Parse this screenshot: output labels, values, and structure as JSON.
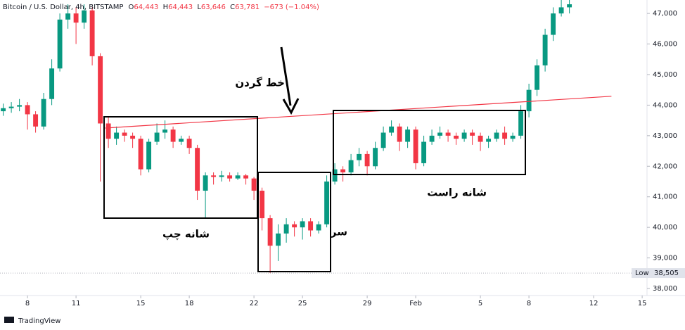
{
  "chart_data": {
    "type": "candlestick",
    "header": {
      "symbol": "Bitcoin / U.S. Dollar, 4h, BITSTAMP",
      "open_label": "O",
      "open": "64,443",
      "high_label": "H",
      "high": "64,443",
      "low_label": "L",
      "low": "63,646",
      "close_label": "C",
      "close": "63,781",
      "change": "−673 (−1.04%)"
    },
    "x": [
      6.5,
      7,
      7.5,
      8,
      8.5,
      9,
      9.5,
      10,
      10.5,
      11,
      11.5,
      12,
      12.5,
      13,
      13.5,
      14,
      14.5,
      15,
      15.5,
      16,
      16.5,
      17,
      17.5,
      18,
      18.5,
      19,
      19.5,
      20,
      20.5,
      21,
      21.5,
      22,
      22.5,
      23,
      23.5,
      24,
      24.5,
      25,
      25.5,
      26,
      26.5,
      27,
      27.5,
      28,
      28.5,
      29,
      29.5,
      30,
      30.5,
      31,
      31.5,
      32,
      32.5,
      33,
      33.5,
      34,
      34.5,
      35,
      35.5,
      36,
      36.5,
      37,
      37.5,
      38,
      38.5,
      39,
      39.5,
      40,
      40.5,
      41,
      41.5
    ],
    "open": [
      43800,
      43900,
      43950,
      44000,
      43700,
      43300,
      44200,
      45200,
      46800,
      47000,
      46700,
      47100,
      45600,
      43400,
      42900,
      43100,
      43000,
      42900,
      41900,
      42800,
      43100,
      43200,
      42800,
      42900,
      42600,
      41200,
      41700,
      41650,
      41700,
      41600,
      41700,
      41600,
      41200,
      40300,
      39400,
      39800,
      40100,
      40000,
      40200,
      39900,
      40100,
      41500,
      41900,
      41800,
      42200,
      42400,
      42000,
      42600,
      43100,
      43300,
      42800,
      43200,
      42100,
      42800,
      43000,
      43100,
      43000,
      42900,
      43100,
      43000,
      42800,
      42900,
      43100,
      42900,
      43000,
      43800,
      44500,
      45300,
      46300,
      47000,
      47200
    ],
    "high": [
      44050,
      44100,
      44200,
      44100,
      43800,
      44400,
      45500,
      47000,
      47300,
      47200,
      47300,
      47200,
      45700,
      43600,
      43300,
      43200,
      43100,
      43000,
      42900,
      43400,
      43500,
      43300,
      43000,
      43000,
      42700,
      41800,
      41800,
      41850,
      41800,
      41800,
      41750,
      41650,
      41300,
      40400,
      40100,
      40300,
      40200,
      40300,
      40300,
      40200,
      41700,
      42100,
      42000,
      42400,
      42600,
      42500,
      42800,
      43300,
      43500,
      43400,
      43300,
      43300,
      43000,
      43200,
      43300,
      43200,
      43100,
      43200,
      43200,
      43100,
      43000,
      43200,
      43300,
      43100,
      44000,
      44700,
      45500,
      46500,
      47200,
      47500,
      47500
    ],
    "low": [
      43650,
      43750,
      43800,
      43200,
      43100,
      43200,
      44000,
      45100,
      46500,
      46000,
      46500,
      45300,
      41500,
      42600,
      42700,
      42800,
      42600,
      41700,
      41800,
      42700,
      42900,
      42600,
      42700,
      42400,
      40900,
      40300,
      41400,
      41500,
      41500,
      41550,
      41400,
      40900,
      39900,
      38505,
      38900,
      39500,
      39700,
      39600,
      39700,
      39800,
      40000,
      41400,
      41500,
      41700,
      42000,
      41700,
      41900,
      42500,
      43000,
      42500,
      42600,
      41900,
      42000,
      42700,
      42900,
      42800,
      42700,
      42800,
      42700,
      42500,
      42600,
      42800,
      42700,
      42800,
      42900,
      43600,
      44300,
      45100,
      46100,
      46900,
      47000
    ],
    "close": [
      43900,
      43950,
      44000,
      43700,
      43300,
      44200,
      45200,
      46800,
      47000,
      46700,
      47100,
      45600,
      43400,
      42900,
      43100,
      43000,
      42900,
      41900,
      42800,
      43100,
      43200,
      42800,
      42900,
      42600,
      41200,
      41700,
      41650,
      41700,
      41600,
      41700,
      41600,
      41200,
      40300,
      39400,
      39800,
      40100,
      40000,
      40200,
      39900,
      40100,
      41500,
      41900,
      41800,
      42200,
      42400,
      42000,
      42600,
      43100,
      43300,
      42800,
      43200,
      42100,
      42800,
      43000,
      43100,
      43000,
      42900,
      43100,
      43000,
      42800,
      42900,
      43100,
      42900,
      43000,
      43800,
      44500,
      45300,
      46300,
      47000,
      47200,
      47300
    ],
    "up_color": "#089981",
    "down_color": "#f23645",
    "xlim": [
      6.3,
      46.3
    ],
    "xticks": [
      8,
      11,
      15,
      18,
      22,
      25,
      29,
      {
        "value": 32,
        "label": "Feb"
      },
      {
        "value": 36,
        "label": "5"
      },
      {
        "value": 39,
        "label": "8"
      },
      {
        "value": 43,
        "label": "12"
      },
      {
        "value": 46,
        "label": "15"
      }
    ],
    "ylim": [
      37770,
      47440
    ],
    "yticks": [
      {
        "value": 38000,
        "label": "38,000"
      },
      {
        "value": 39000,
        "label": "39,000"
      },
      {
        "value": 40000,
        "label": "40,000"
      },
      {
        "value": 41000,
        "label": "41,000"
      },
      {
        "value": 42000,
        "label": "42,000"
      },
      {
        "value": 43000,
        "label": "43,000"
      },
      {
        "value": 44000,
        "label": "44,000"
      },
      {
        "value": 45000,
        "label": "45,000"
      },
      {
        "value": 46000,
        "label": "46,000"
      },
      {
        "value": 47000,
        "label": "47,000"
      }
    ],
    "grid": false,
    "low_marker": {
      "label": "Low",
      "value": 38505,
      "value_label": "38,505"
    },
    "neckline": {
      "x": [
        12.8,
        44.1
      ],
      "y": [
        43250,
        44290
      ],
      "color": "#f23645"
    },
    "annotations": {
      "neckline": "خط گردن",
      "left_shoulder": "شانه چپ",
      "head": "سر",
      "right_shoulder": "شانه راست"
    },
    "brand": "TradingView"
  }
}
